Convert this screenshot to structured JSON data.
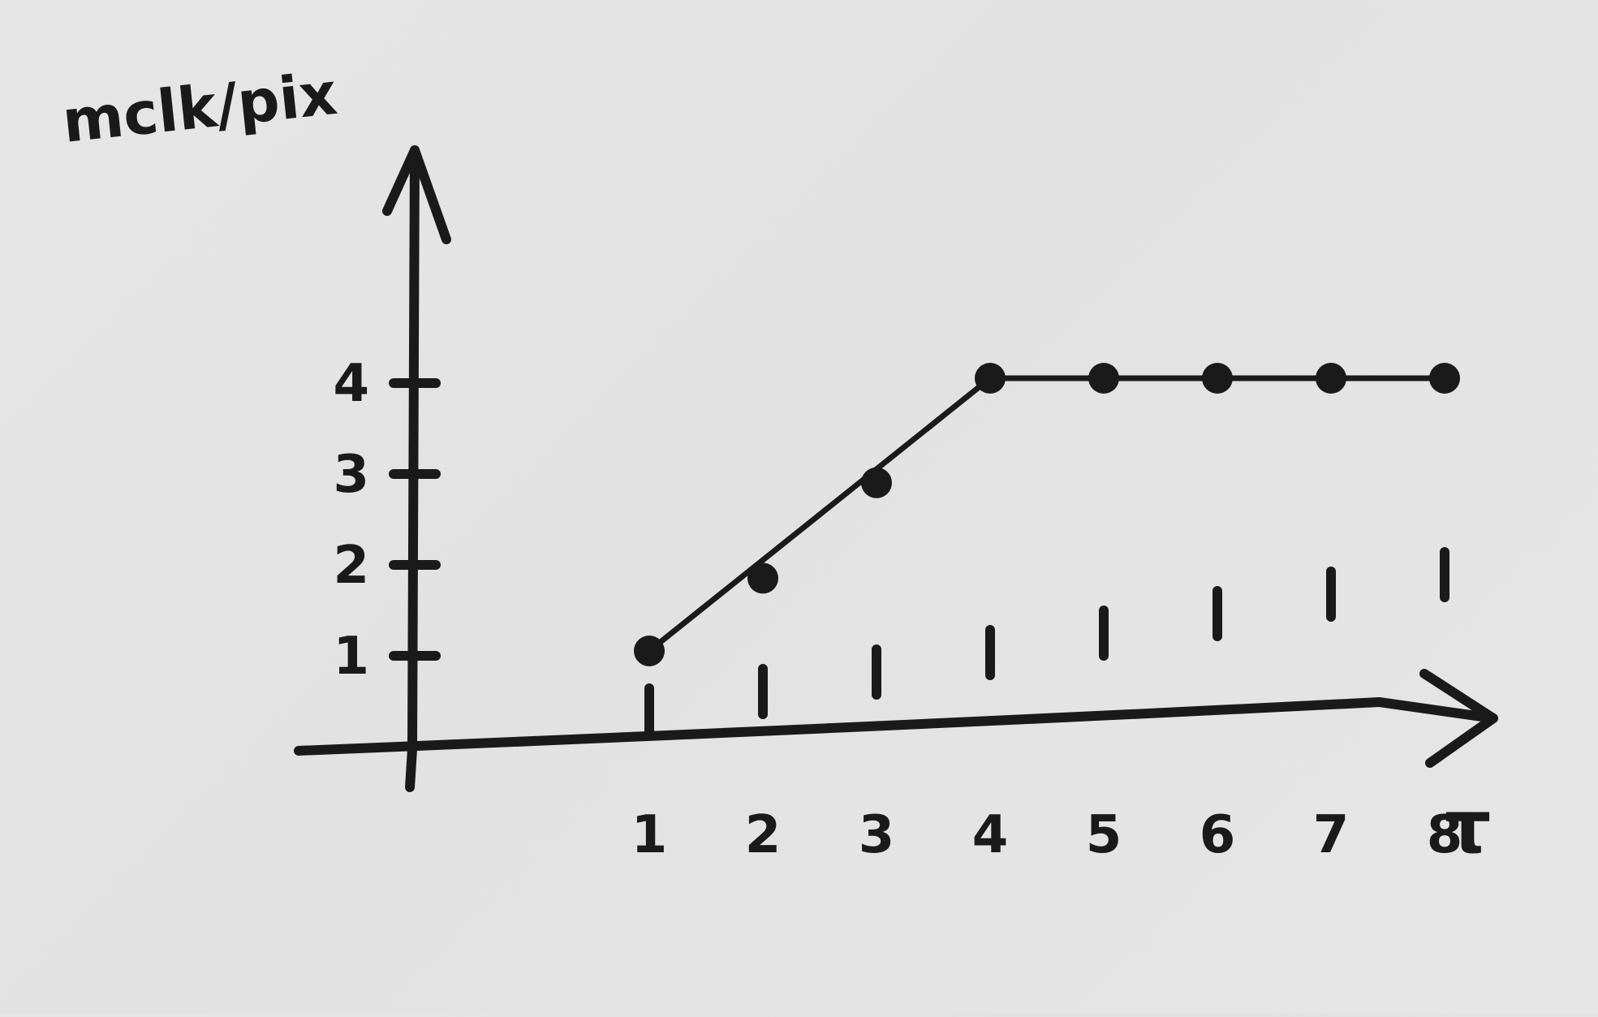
{
  "chart_data": {
    "type": "line",
    "title": "",
    "xlabel": "τ",
    "ylabel": "mclk/pix",
    "x": [
      1,
      2,
      3,
      4,
      5,
      6,
      7,
      8
    ],
    "series": [
      {
        "values": [
          1,
          1.8,
          2.85,
          4,
          4,
          4,
          4,
          4
        ]
      }
    ],
    "fit_line": {
      "x": [
        1,
        4,
        8
      ],
      "y": [
        1,
        4,
        4
      ]
    },
    "x_ticks": [
      "1",
      "2",
      "3",
      "4",
      "5",
      "6",
      "7",
      "8"
    ],
    "y_ticks": [
      "1",
      "2",
      "3",
      "4"
    ],
    "xlim": [
      0,
      8.5
    ],
    "ylim": [
      0,
      4.5
    ],
    "grid": false,
    "legend": "none",
    "style": "hand-drawn",
    "colors": {
      "ink": "#1a1a1a",
      "paper": "#e4e4e4"
    }
  }
}
